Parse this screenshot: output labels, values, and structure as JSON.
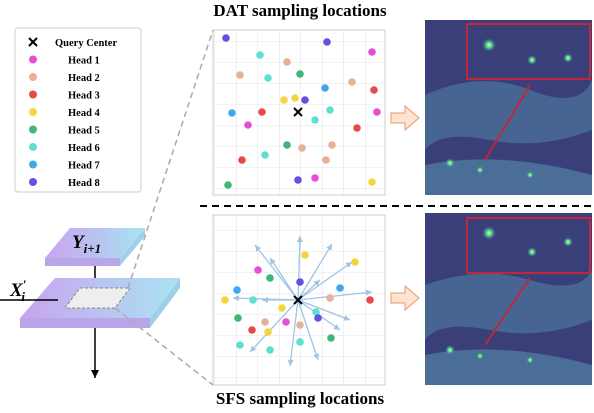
{
  "titles": {
    "top": "DAT sampling locations",
    "bottom": "SFS sampling locations"
  },
  "legend": [
    {
      "label": "Query Center",
      "color": "#000000"
    },
    {
      "label": "Head 1",
      "color": "#e64ed8"
    },
    {
      "label": "Head 2",
      "color": "#e8b097"
    },
    {
      "label": "Head 3",
      "color": "#e84a4a"
    },
    {
      "label": "Head 4",
      "color": "#f5d53b"
    },
    {
      "label": "Head 5",
      "color": "#3cb878"
    },
    {
      "label": "Head 6",
      "color": "#5ee0d0"
    },
    {
      "label": "Head 7",
      "color": "#3fa8e8"
    },
    {
      "label": "Head 8",
      "color": "#6a4ee0"
    }
  ],
  "labels": {
    "y": "Y",
    "y_sub": "i+1",
    "x": "X",
    "x_prime": "′",
    "x_sub": "i"
  }
}
